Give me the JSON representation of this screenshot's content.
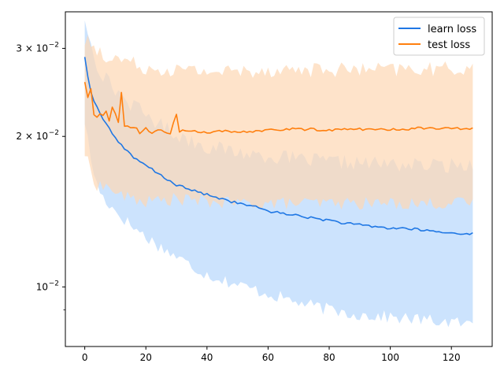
{
  "chart_data": {
    "type": "line",
    "title": "",
    "xlabel": "",
    "ylabel": "",
    "xlim": [
      -6.35,
      133.35
    ],
    "ylim": [
      0.0076,
      0.0355
    ],
    "yscale": "log",
    "grid": false,
    "legend_position": "top-right",
    "x_ticks": [
      0,
      20,
      40,
      60,
      80,
      100,
      120
    ],
    "x_tick_labels": [
      "0",
      "20",
      "40",
      "60",
      "80",
      "100",
      "120"
    ],
    "y_major_ticks": [
      0.01,
      0.02,
      0.03
    ],
    "y_tick_labels": [
      "10",
      "2 × 10",
      "3 × 10"
    ],
    "y_tick_exponent": "−2",
    "y_minor_ticks": [
      0.009
    ],
    "series": [
      {
        "name": "learn loss",
        "color": "#1f77e4",
        "band_color": "#cce3fd",
        "anchors": [
          [
            0,
            0.0288
          ],
          [
            1,
            0.0265
          ],
          [
            2,
            0.0247
          ],
          [
            3,
            0.0235
          ],
          [
            5,
            0.0222
          ],
          [
            7,
            0.0212
          ],
          [
            10,
            0.0199
          ],
          [
            13,
            0.0189
          ],
          [
            16,
            0.0181
          ],
          [
            20,
            0.0175
          ],
          [
            25,
            0.0167
          ],
          [
            30,
            0.016
          ],
          [
            35,
            0.0156
          ],
          [
            40,
            0.0153
          ],
          [
            45,
            0.015
          ],
          [
            50,
            0.0147
          ],
          [
            55,
            0.0145
          ],
          [
            60,
            0.0142
          ],
          [
            65,
            0.014
          ],
          [
            70,
            0.0139
          ],
          [
            75,
            0.0137
          ],
          [
            80,
            0.0136
          ],
          [
            85,
            0.0134
          ],
          [
            90,
            0.0133
          ],
          [
            95,
            0.0132
          ],
          [
            100,
            0.0131
          ],
          [
            105,
            0.0131
          ],
          [
            110,
            0.013
          ],
          [
            115,
            0.0129
          ],
          [
            120,
            0.0128
          ],
          [
            127,
            0.0128
          ]
        ],
        "band_lower": [
          [
            0,
            0.0215
          ],
          [
            2,
            0.018
          ],
          [
            4,
            0.016
          ],
          [
            6,
            0.0151
          ],
          [
            10,
            0.0142
          ],
          [
            15,
            0.0133
          ],
          [
            20,
            0.0126
          ],
          [
            25,
            0.012
          ],
          [
            30,
            0.0115
          ],
          [
            35,
            0.011
          ],
          [
            40,
            0.0106
          ],
          [
            50,
            0.0101
          ],
          [
            60,
            0.0097
          ],
          [
            70,
            0.0093
          ],
          [
            80,
            0.009
          ],
          [
            90,
            0.0088
          ],
          [
            100,
            0.0087
          ],
          [
            110,
            0.0086
          ],
          [
            120,
            0.0085
          ],
          [
            127,
            0.0084
          ]
        ],
        "band_upper": [
          [
            0,
            0.0345
          ],
          [
            2,
            0.031
          ],
          [
            4,
            0.028
          ],
          [
            6,
            0.0265
          ],
          [
            10,
            0.0248
          ],
          [
            15,
            0.0233
          ],
          [
            20,
            0.0221
          ],
          [
            25,
            0.0211
          ],
          [
            30,
            0.0202
          ],
          [
            35,
            0.0196
          ],
          [
            40,
            0.0191
          ],
          [
            50,
            0.0186
          ],
          [
            60,
            0.0183
          ],
          [
            70,
            0.018
          ],
          [
            80,
            0.0178
          ],
          [
            90,
            0.0177
          ],
          [
            100,
            0.0176
          ],
          [
            110,
            0.0175
          ],
          [
            120,
            0.0175
          ],
          [
            127,
            0.0176
          ]
        ]
      },
      {
        "name": "test loss",
        "color": "#ff7f0e",
        "band_color": "#fdd7b3",
        "anchors": [
          [
            0,
            0.0257
          ],
          [
            1,
            0.0238
          ],
          [
            2,
            0.025
          ],
          [
            3,
            0.0222
          ],
          [
            4,
            0.0219
          ],
          [
            5,
            0.0222
          ],
          [
            6,
            0.022
          ],
          [
            7,
            0.0224
          ],
          [
            8,
            0.0216
          ],
          [
            9,
            0.0228
          ],
          [
            10,
            0.0221
          ],
          [
            11,
            0.0213
          ],
          [
            12,
            0.0245
          ],
          [
            13,
            0.021
          ],
          [
            15,
            0.0209
          ],
          [
            17,
            0.0208
          ],
          [
            18,
            0.0203
          ],
          [
            20,
            0.0207
          ],
          [
            22,
            0.0203
          ],
          [
            25,
            0.0206
          ],
          [
            28,
            0.0203
          ],
          [
            30,
            0.0222
          ],
          [
            31,
            0.0205
          ],
          [
            35,
            0.0205
          ],
          [
            40,
            0.0204
          ],
          [
            45,
            0.0205
          ],
          [
            50,
            0.0203
          ],
          [
            55,
            0.0205
          ],
          [
            60,
            0.0206
          ],
          [
            70,
            0.0207
          ],
          [
            80,
            0.0206
          ],
          [
            90,
            0.0207
          ],
          [
            100,
            0.0206
          ],
          [
            110,
            0.0208
          ],
          [
            120,
            0.0207
          ],
          [
            127,
            0.0208
          ]
        ],
        "band_lower": [
          [
            0,
            0.0185
          ],
          [
            2,
            0.017
          ],
          [
            4,
            0.016
          ],
          [
            8,
            0.0158
          ],
          [
            12,
            0.0152
          ],
          [
            20,
            0.0148
          ],
          [
            30,
            0.015
          ],
          [
            40,
            0.0148
          ],
          [
            50,
            0.0147
          ],
          [
            60,
            0.0147
          ],
          [
            80,
            0.0147
          ],
          [
            100,
            0.0147
          ],
          [
            120,
            0.0147
          ],
          [
            127,
            0.0147
          ]
        ],
        "band_upper": [
          [
            0,
            0.031
          ],
          [
            2,
            0.031
          ],
          [
            4,
            0.0295
          ],
          [
            8,
            0.029
          ],
          [
            12,
            0.0285
          ],
          [
            20,
            0.0275
          ],
          [
            30,
            0.0272
          ],
          [
            40,
            0.027
          ],
          [
            50,
            0.027
          ],
          [
            60,
            0.0272
          ],
          [
            80,
            0.0272
          ],
          [
            100,
            0.0272
          ],
          [
            120,
            0.0273
          ],
          [
            127,
            0.0275
          ]
        ]
      }
    ],
    "x_max": 127
  }
}
